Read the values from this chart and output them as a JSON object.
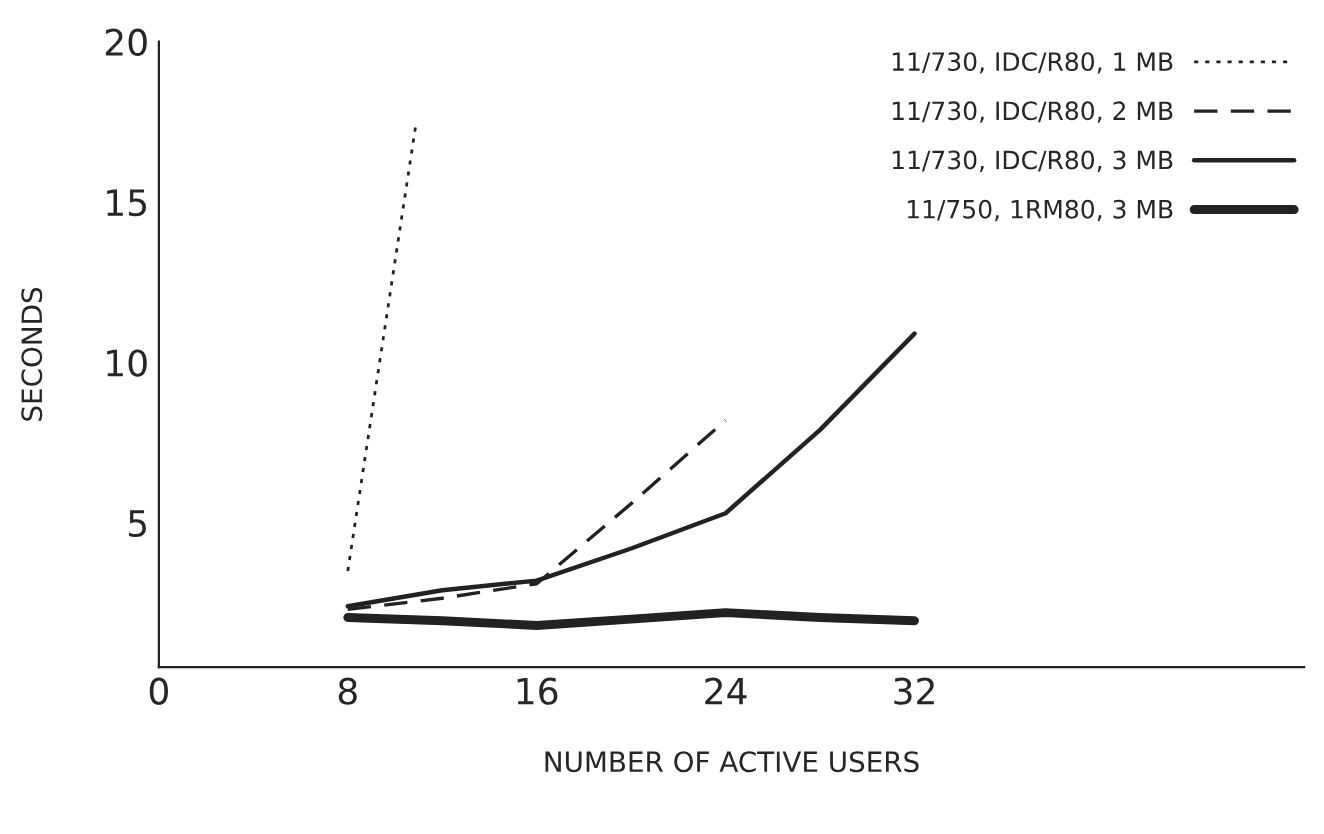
{
  "chart_data": {
    "type": "line",
    "xlabel": "NUMBER OF ACTIVE USERS",
    "ylabel": "SECONDS",
    "xlim": [
      0,
      48.5
    ],
    "xticks": [
      0,
      8,
      16,
      24,
      32
    ],
    "ylim": [
      0.5,
      20
    ],
    "yticks": [
      5,
      10,
      15,
      20
    ],
    "legend": "top right",
    "grid": false,
    "marker": "none",
    "series": [
      {
        "name": "11/730, IDC/R80, 1 MB",
        "color": "#222222",
        "line_style": "dotted",
        "x": [
          8,
          10.9
        ],
        "values": [
          3.5,
          17.5
        ]
      },
      {
        "name": "11/730, IDC/R80, 2 MB",
        "color": "#222222",
        "line_style": "dashed",
        "x": [
          8,
          12,
          16,
          20,
          24
        ],
        "values": [
          2.3,
          2.65,
          3.1,
          5.6,
          8.2
        ]
      },
      {
        "name": "11/730, IDC/R80, 3 MB",
        "color": "#222222",
        "line_style": "solid",
        "x": [
          8,
          12,
          16,
          20,
          24,
          28,
          32
        ],
        "values": [
          2.4,
          2.9,
          3.2,
          4.2,
          5.3,
          7.9,
          10.9
        ]
      },
      {
        "name": "11/750, 1RM80, 3 MB",
        "color": "#222222",
        "line_style": "solid",
        "x": [
          8,
          12,
          16,
          20,
          24,
          28,
          32
        ],
        "values": [
          2.05,
          1.95,
          1.8,
          2.0,
          2.2,
          2.05,
          1.95
        ]
      }
    ]
  }
}
